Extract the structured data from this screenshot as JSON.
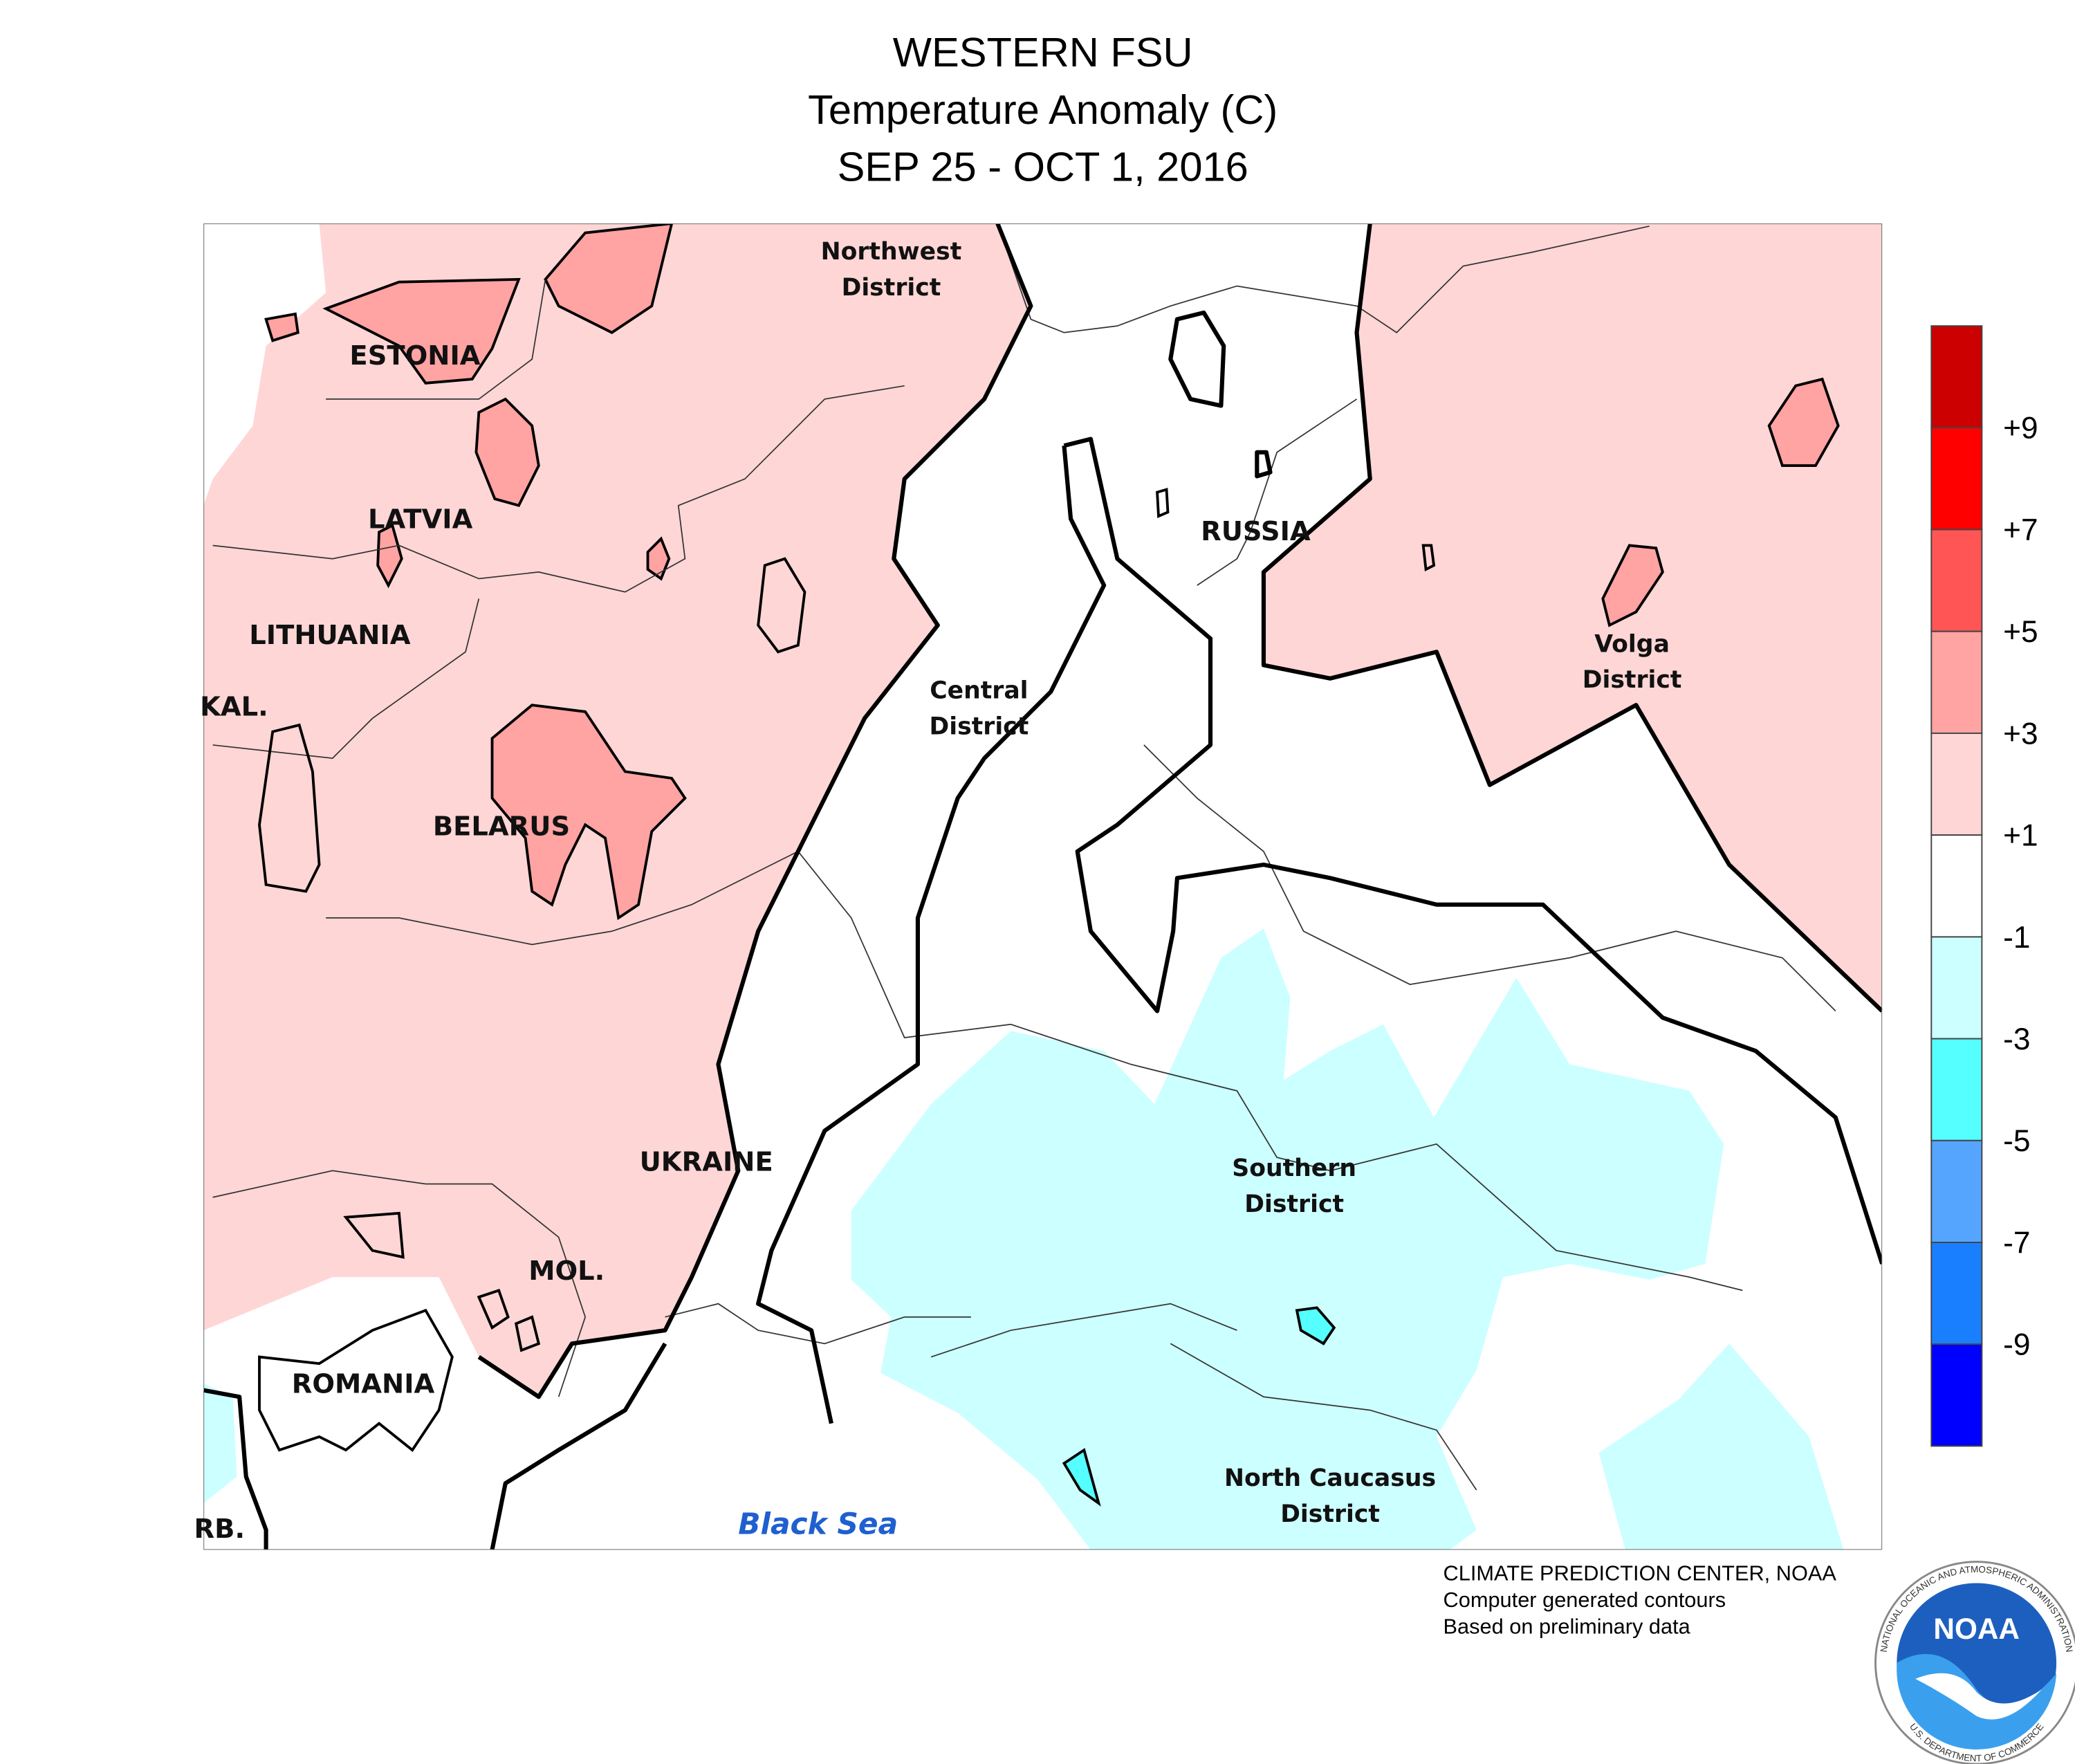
{
  "header": {
    "title": "WESTERN FSU",
    "subtitle": "Temperature Anomaly (C)",
    "date": "SEP 25 - OCT 1, 2016"
  },
  "map": {
    "labels": [
      {
        "lines": [
          "Northwest",
          "District"
        ]
      },
      {
        "lines": [
          "ESTONIA"
        ]
      },
      {
        "lines": [
          "LATVIA"
        ]
      },
      {
        "lines": [
          "LITHUANIA"
        ]
      },
      {
        "lines": [
          "KAL."
        ]
      },
      {
        "lines": [
          "BELARUS"
        ]
      },
      {
        "lines": [
          "RUSSIA"
        ]
      },
      {
        "lines": [
          "Central",
          "District"
        ]
      },
      {
        "lines": [
          "Volga",
          "District"
        ]
      },
      {
        "lines": [
          "UKRAINE"
        ]
      },
      {
        "lines": [
          "Southern",
          "District"
        ]
      },
      {
        "lines": [
          "MOL."
        ]
      },
      {
        "lines": [
          "ROMANIA"
        ]
      },
      {
        "lines": [
          "North Caucasus",
          "District"
        ]
      },
      {
        "lines": [
          "RB."
        ]
      }
    ],
    "sea_label": "Black Sea"
  },
  "legend": {
    "labels": [
      "+9",
      "+7",
      "+5",
      "+3",
      "+1",
      "-1",
      "-3",
      "-5",
      "-7",
      "-9"
    ],
    "colors": [
      "#cc0000",
      "#ff0000",
      "#ff5555",
      "#ffa3a3",
      "#ffd6d6",
      "#ffffff",
      "#ccffff",
      "#55ffff",
      "#55a5ff",
      "#1a7fff",
      "#0000ff"
    ]
  },
  "credits": [
    "CLIMATE PREDICTION CENTER, NOAA",
    "Computer generated contours",
    "Based on preliminary data"
  ],
  "logo": {
    "text": "NOAA",
    "ring_top": "NATIONAL OCEANIC AND ATMOSPHERIC ADMINISTRATION",
    "ring_bottom": "U.S. DEPARTMENT OF COMMERCE"
  }
}
